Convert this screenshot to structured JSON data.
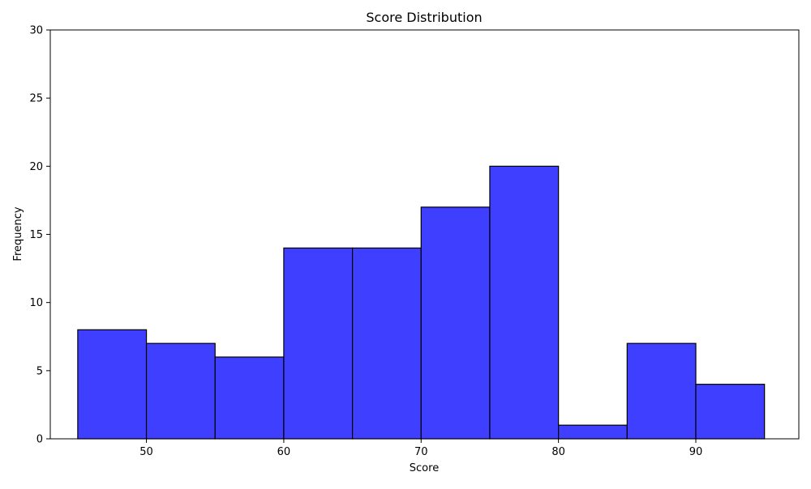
{
  "chart_data": {
    "type": "histogram",
    "title": "Score Distribution",
    "xlabel": "Score",
    "ylabel": "Frequency",
    "bin_edges": [
      45,
      50,
      55,
      60,
      65,
      70,
      75,
      80,
      85,
      90,
      95
    ],
    "values": [
      8,
      7,
      6,
      14,
      14,
      17,
      20,
      1,
      7,
      4
    ],
    "xlim": [
      43.0,
      97.5
    ],
    "ylim": [
      0,
      30
    ],
    "xticks": [
      50,
      60,
      70,
      80,
      90
    ],
    "yticks": [
      0,
      5,
      10,
      15,
      20,
      25,
      30
    ],
    "bar_color": "#3f3fff",
    "edge_color": "#000000",
    "grid": false,
    "legend": "none"
  }
}
